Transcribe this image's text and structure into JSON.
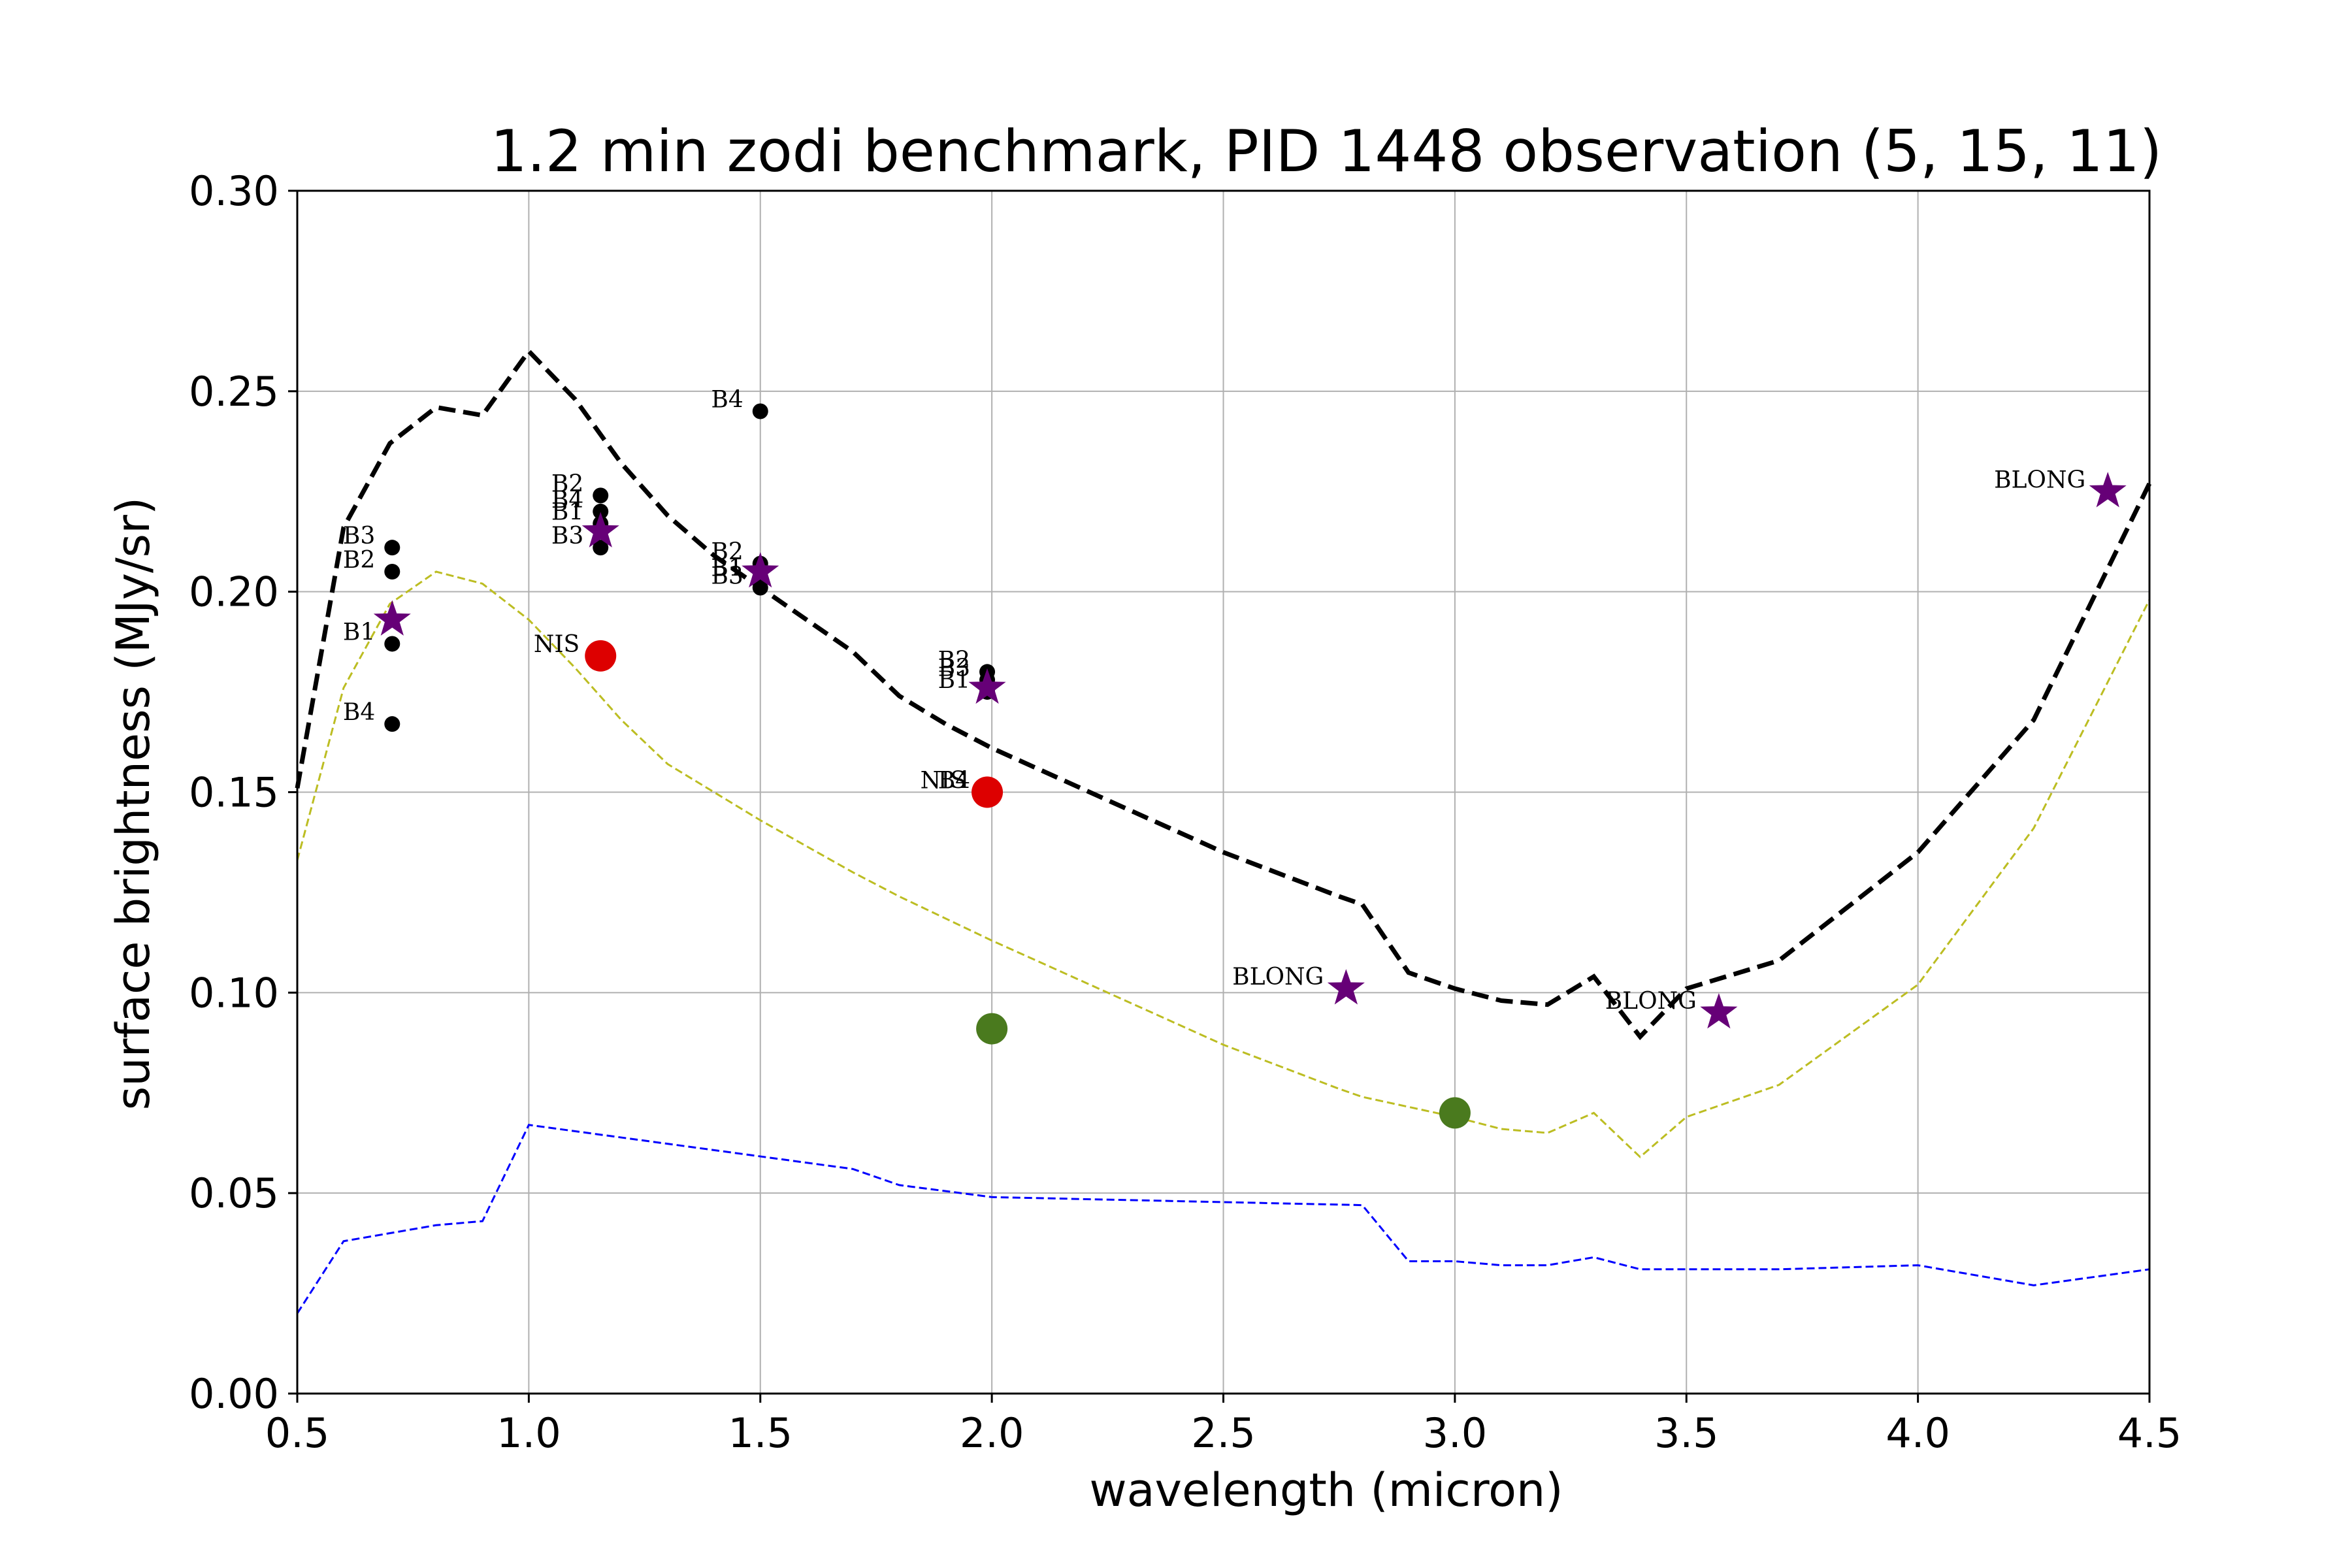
{
  "chart_data": {
    "type": "line",
    "title": "1.2 min zodi benchmark, PID 1448 observation (5, 15, 11)",
    "xlabel": "wavelength (micron)",
    "ylabel": "surface brightness (MJy/sr)",
    "xlim": [
      0.5,
      4.5
    ],
    "ylim": [
      0.0,
      0.3
    ],
    "x_ticks": [
      "0.5",
      "1.0",
      "1.5",
      "2.0",
      "2.5",
      "3.0",
      "3.5",
      "4.0",
      "4.5"
    ],
    "y_ticks": [
      "0.00",
      "0.05",
      "0.10",
      "0.15",
      "0.20",
      "0.25",
      "0.30"
    ],
    "grid": true,
    "lines": [
      {
        "color": "#000000",
        "style": "dashed-thick",
        "x": [
          0.5,
          0.6,
          0.7,
          0.8,
          0.9,
          1.0,
          1.1,
          1.2,
          1.3,
          1.4,
          1.5,
          1.6,
          1.7,
          1.8,
          1.9,
          2.0,
          2.25,
          2.5,
          2.75,
          2.8,
          2.9,
          3.0,
          3.1,
          3.2,
          3.3,
          3.4,
          3.5,
          3.7,
          4.0,
          4.25,
          4.5
        ],
        "y": [
          0.151,
          0.216,
          0.237,
          0.246,
          0.244,
          0.26,
          0.248,
          0.232,
          0.219,
          0.209,
          0.201,
          0.193,
          0.185,
          0.174,
          0.167,
          0.161,
          0.148,
          0.135,
          0.124,
          0.122,
          0.105,
          0.101,
          0.098,
          0.097,
          0.104,
          0.089,
          0.101,
          0.108,
          0.135,
          0.168,
          0.227
        ]
      },
      {
        "color": "#bcbd22",
        "style": "dashed-thin",
        "x": [
          0.5,
          0.6,
          0.7,
          0.8,
          0.9,
          1.0,
          1.1,
          1.2,
          1.3,
          1.5,
          1.7,
          1.8,
          2.0,
          2.25,
          2.5,
          2.75,
          2.8,
          3.0,
          3.1,
          3.2,
          3.3,
          3.4,
          3.5,
          3.7,
          4.0,
          4.25,
          4.5
        ],
        "y": [
          0.133,
          0.176,
          0.197,
          0.205,
          0.202,
          0.193,
          0.181,
          0.168,
          0.157,
          0.143,
          0.13,
          0.124,
          0.113,
          0.1,
          0.087,
          0.076,
          0.074,
          0.069,
          0.066,
          0.065,
          0.07,
          0.059,
          0.069,
          0.077,
          0.102,
          0.141,
          0.198
        ]
      },
      {
        "color": "#0000ff",
        "style": "dashed-thin",
        "x": [
          0.5,
          0.6,
          0.7,
          0.8,
          0.9,
          1.0,
          1.7,
          1.8,
          2.0,
          2.8,
          2.9,
          3.0,
          3.1,
          3.2,
          3.3,
          3.4,
          3.5,
          3.7,
          4.0,
          4.25,
          4.5
        ],
        "y": [
          0.02,
          0.038,
          0.04,
          0.042,
          0.043,
          0.067,
          0.056,
          0.052,
          0.049,
          0.047,
          0.033,
          0.033,
          0.032,
          0.032,
          0.034,
          0.031,
          0.031,
          0.031,
          0.032,
          0.027,
          0.031
        ]
      }
    ],
    "points": [
      {
        "x": 0.705,
        "y": 0.211,
        "marker": "dot",
        "color": "#000000",
        "label": "B3"
      },
      {
        "x": 0.705,
        "y": 0.205,
        "marker": "dot",
        "color": "#000000",
        "label": "B2"
      },
      {
        "x": 0.705,
        "y": 0.187,
        "marker": "dot",
        "color": "#000000",
        "label": "B1"
      },
      {
        "x": 0.705,
        "y": 0.167,
        "marker": "dot",
        "color": "#000000",
        "label": "B4"
      },
      {
        "x": 0.705,
        "y": 0.193,
        "marker": "star",
        "color": "#660077",
        "label": ""
      },
      {
        "x": 1.155,
        "y": 0.224,
        "marker": "dot",
        "color": "#000000",
        "label": "B2"
      },
      {
        "x": 1.155,
        "y": 0.22,
        "marker": "dot",
        "color": "#000000",
        "label": "B4"
      },
      {
        "x": 1.155,
        "y": 0.217,
        "marker": "dot",
        "color": "#000000",
        "label": "B1"
      },
      {
        "x": 1.155,
        "y": 0.211,
        "marker": "dot",
        "color": "#000000",
        "label": "B3"
      },
      {
        "x": 1.155,
        "y": 0.215,
        "marker": "star",
        "color": "#660077",
        "label": ""
      },
      {
        "x": 1.155,
        "y": 0.184,
        "marker": "bigdot",
        "color": "#dd0000",
        "label": "NIS"
      },
      {
        "x": 1.5,
        "y": 0.245,
        "marker": "dot",
        "color": "#000000",
        "label": "B4"
      },
      {
        "x": 1.5,
        "y": 0.207,
        "marker": "dot",
        "color": "#000000",
        "label": "B2"
      },
      {
        "x": 1.5,
        "y": 0.203,
        "marker": "dot",
        "color": "#000000",
        "label": "B1"
      },
      {
        "x": 1.5,
        "y": 0.201,
        "marker": "dot",
        "color": "#000000",
        "label": "B3"
      },
      {
        "x": 1.5,
        "y": 0.205,
        "marker": "star",
        "color": "#660077",
        "label": ""
      },
      {
        "x": 1.99,
        "y": 0.18,
        "marker": "dot",
        "color": "#000000",
        "label": "B2"
      },
      {
        "x": 1.99,
        "y": 0.178,
        "marker": "dot",
        "color": "#000000",
        "label": "B3"
      },
      {
        "x": 1.99,
        "y": 0.175,
        "marker": "dot",
        "color": "#000000",
        "label": "B1"
      },
      {
        "x": 1.99,
        "y": 0.15,
        "marker": "dot",
        "color": "#000000",
        "label": "B4"
      },
      {
        "x": 1.99,
        "y": 0.176,
        "marker": "star",
        "color": "#660077",
        "label": ""
      },
      {
        "x": 1.99,
        "y": 0.15,
        "marker": "bigdot",
        "color": "#dd0000",
        "label": "NIS"
      },
      {
        "x": 2.0,
        "y": 0.091,
        "marker": "bigdot",
        "color": "#4a7a1e",
        "label": ""
      },
      {
        "x": 3.0,
        "y": 0.07,
        "marker": "bigdot",
        "color": "#4a7a1e",
        "label": ""
      },
      {
        "x": 2.765,
        "y": 0.101,
        "marker": "star",
        "color": "#660077",
        "label": "BLONG"
      },
      {
        "x": 3.57,
        "y": 0.095,
        "marker": "star",
        "color": "#660077",
        "label": "BLONG"
      },
      {
        "x": 4.41,
        "y": 0.225,
        "marker": "star",
        "color": "#660077",
        "label": "BLONG"
      }
    ]
  }
}
